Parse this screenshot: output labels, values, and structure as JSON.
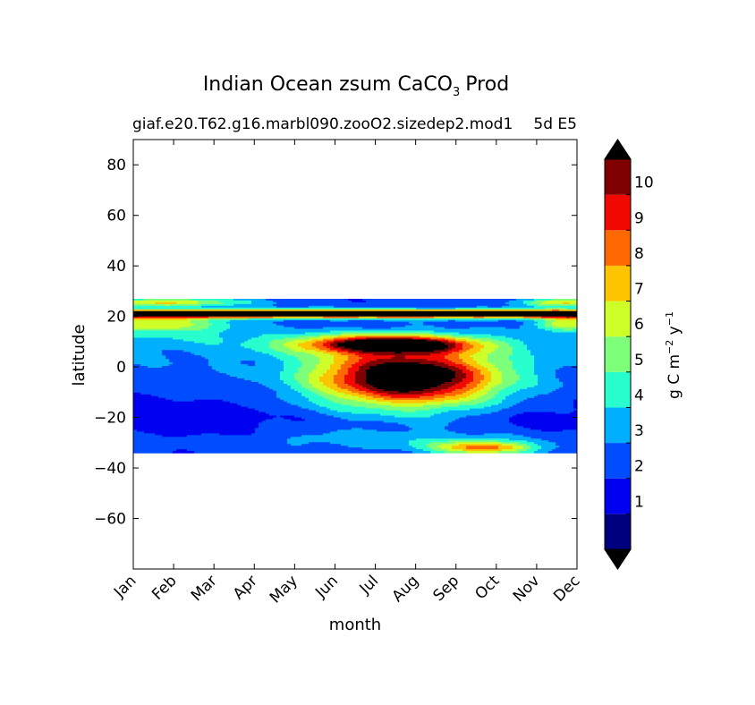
{
  "chart_data": {
    "type": "contourf",
    "title_main": "Indian Ocean zsum CaCO",
    "title_sub_script": "3",
    "title_tail": "Prod",
    "subtitle": "giaf.e20.T62.g16.marbl090.zooO2.sizedep2.mod1",
    "subtitle_right": "5d E5",
    "xlabel": "month",
    "ylabel": "latitude",
    "x_ticks": [
      "Jan",
      "Feb",
      "Mar",
      "Apr",
      "May",
      "Jun",
      "Jul",
      "Aug",
      "Sep",
      "Oct",
      "Nov",
      "Dec"
    ],
    "xlim": [
      0,
      11
    ],
    "ylim": [
      -80,
      90
    ],
    "y_ticks": [
      80,
      60,
      40,
      20,
      0,
      -20,
      -40,
      -60
    ],
    "y_tick_labels": [
      "80",
      "60",
      "40",
      "20",
      "0",
      "−20",
      "−40",
      "−60"
    ],
    "data_lat_range": [
      -34,
      27
    ],
    "colorbar": {
      "label": "g C m",
      "label_sup1": "−2",
      "label_mid": " y",
      "label_sup2": "−1",
      "extend": "both",
      "levels": [
        0,
        1,
        2,
        3,
        4,
        5,
        6,
        7,
        8,
        9,
        10,
        11
      ],
      "tick_values": [
        1,
        2,
        3,
        4,
        5,
        6,
        7,
        8,
        9,
        10
      ],
      "tick_labels": [
        "1",
        "2",
        "3",
        "4",
        "5",
        "6",
        "7",
        "8",
        "9",
        "10"
      ],
      "colors": [
        "#00007f",
        "#0000f1",
        "#004cff",
        "#00b0ff",
        "#29ffce",
        "#7dff7a",
        "#ceff29",
        "#ffc400",
        "#ff6800",
        "#f10800",
        "#7f0000"
      ],
      "over_color": "#000000",
      "under_color": "#000000"
    },
    "field_description": "Seasonal cycle of CaCO3 production: high (>10) band near 20-22N all year; strong bloom Jun-Sep near equator (-15 to 10); low (1-3) values in southern subtropics; secondary maximum near -32 in Sep-Oct."
  },
  "colors": {
    "axes": "#000000",
    "background": "#ffffff"
  }
}
